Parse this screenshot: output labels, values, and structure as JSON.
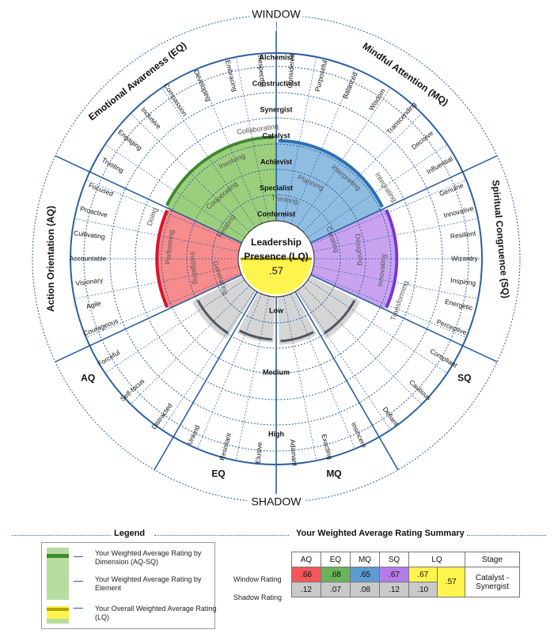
{
  "labels": {
    "window": "WINDOW",
    "shadow": "SHADOW",
    "center_l1": "Leadership",
    "center_l2": "Presence (LQ)",
    "center_value": ".57"
  },
  "levels": [
    "Conformist",
    "Specialist",
    "Achievist",
    "Catalyst",
    "Synergist",
    "Constructivist",
    "Alchemist"
  ],
  "shadow_levels": [
    "Low",
    "Medium",
    "High"
  ],
  "dimensions": [
    {
      "key": "AQ",
      "name": "Action Orientation (AQ)",
      "color": "#f78c8c",
      "arc": "#d9142a",
      "elements": [
        "Generating",
        "Instigating",
        "Performing",
        "Doing"
      ],
      "descriptors": [
        "Courageous",
        "Agile",
        "Visionary",
        "Accountable",
        "Cultivating",
        "Proactive",
        "Focused"
      ],
      "shadow": [
        "Forceful",
        "Self-focus",
        "Distracted"
      ],
      "window": 0.66,
      "shadow_rating": 0.12
    },
    {
      "key": "EQ",
      "name": "Emotional Awareness (EQ)",
      "color": "#9ccf7c",
      "arc": "#3e8a2c",
      "elements": [
        "Relating",
        "Cooperating",
        "Involving",
        "Collaborating"
      ],
      "descriptors": [
        "Trusting",
        "Engaging",
        "Inclusive",
        "Compassion",
        "Developing",
        "Embracing",
        "Respectful"
      ],
      "shadow": [
        "Unkind",
        "Resistant",
        "Elusive"
      ],
      "window": 0.68,
      "shadow_rating": 0.07
    },
    {
      "key": "MQ",
      "name": "Mindful Attention (MQ)",
      "color": "#8fbde2",
      "arc": "#2d6fb4",
      "elements": [
        "Thinking",
        "Planning",
        "Interpreting",
        "Integrating"
      ],
      "descriptors": [
        "Considered",
        "Purposeful",
        "Balanced",
        "Wisdom",
        "Transcending",
        "Decisive",
        "Influential"
      ],
      "shadow": [
        "Adamant",
        "Exacting",
        "Insincere"
      ],
      "window": 0.65,
      "shadow_rating": 0.08
    },
    {
      "key": "SQ",
      "name": "Spiritual Congruence (SQ)",
      "color": "#c9a3f0",
      "arc": "#7b35d6",
      "elements": [
        "Creating",
        "Designing",
        "Innovating",
        "Transforming"
      ],
      "descriptors": [
        "Genuine",
        "Innovative",
        "Resilient",
        "Wizardry",
        "Inspiring",
        "Energetic",
        "Perceptive"
      ],
      "shadow": [
        "Defiant",
        "Cautious",
        "Compliant"
      ],
      "window": 0.67,
      "shadow_rating": 0.12
    }
  ],
  "legend": {
    "title": "Legend",
    "item1": "Your Weighted Average Rating by Dimension (AQ-SQ)",
    "item2": "Your Weighted Average Rating by Element",
    "item3": "Your Overall Weighted Average Rating (LQ)"
  },
  "summary": {
    "title": "Your Weighted Average Rating Summary",
    "headers": [
      "AQ",
      "EQ",
      "MQ",
      "SQ",
      "LQ",
      "Stage"
    ],
    "window_label": "Window Rating",
    "shadow_label": "Shadow Rating",
    "window": [
      ".66",
      ".68",
      ".65",
      ".67",
      ".67"
    ],
    "shadow": [
      ".12",
      ".07",
      ".08",
      ".12",
      ".10"
    ],
    "lq": ".57",
    "stage": "Catalyst - Synergist"
  },
  "colors": {
    "ring": "#2b5fa0",
    "lq_yellow": "#fff34d",
    "shadow_gray": "#d5d5d5",
    "shadow_arc": "#555555"
  },
  "chart_data": {
    "type": "radial-bar",
    "dimensions": [
      "AQ",
      "EQ",
      "MQ",
      "SQ"
    ],
    "window_rating": [
      0.66,
      0.68,
      0.65,
      0.67
    ],
    "shadow_rating": [
      0.12,
      0.07,
      0.08,
      0.12
    ],
    "lq_window": 0.67,
    "lq_shadow": 0.1,
    "lq_overall": 0.57,
    "stage": "Catalyst - Synergist"
  }
}
